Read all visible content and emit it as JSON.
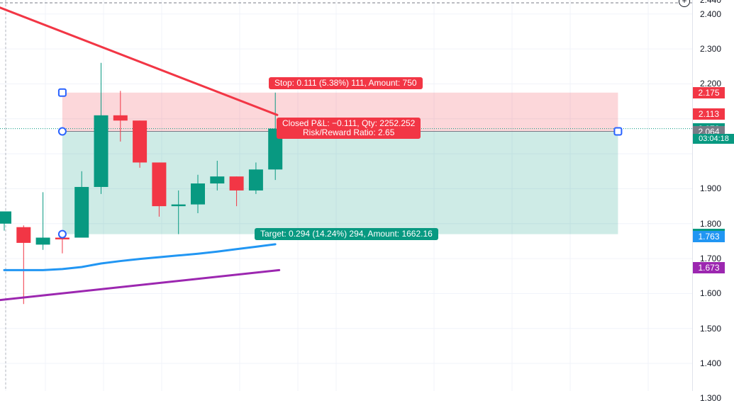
{
  "chart_data": {
    "type": "candlestick",
    "ylim": [
      1.3,
      2.45
    ],
    "grid": true,
    "y_ticks": [
      "2.440",
      "2.400",
      "2.300",
      "2.200",
      "1.900",
      "1.800",
      "1.700",
      "1.600",
      "1.500",
      "1.400",
      "1.300"
    ],
    "candles": [
      {
        "o": 1.8,
        "h": 1.835,
        "l": 1.78,
        "c": 1.835
      },
      {
        "o": 1.79,
        "h": 1.795,
        "l": 1.57,
        "c": 1.745
      },
      {
        "o": 1.74,
        "h": 1.89,
        "l": 1.725,
        "c": 1.76
      },
      {
        "o": 1.76,
        "h": 1.77,
        "l": 1.715,
        "c": 1.755
      },
      {
        "o": 1.76,
        "h": 1.95,
        "l": 1.76,
        "c": 1.905
      },
      {
        "o": 1.905,
        "h": 2.26,
        "l": 1.885,
        "c": 2.11
      },
      {
        "o": 2.11,
        "h": 2.18,
        "l": 2.035,
        "c": 2.095
      },
      {
        "o": 2.095,
        "h": 2.095,
        "l": 1.96,
        "c": 1.975
      },
      {
        "o": 1.975,
        "h": 1.975,
        "l": 1.82,
        "c": 1.85
      },
      {
        "o": 1.85,
        "h": 1.895,
        "l": 1.77,
        "c": 1.855
      },
      {
        "o": 1.855,
        "h": 1.94,
        "l": 1.83,
        "c": 1.915
      },
      {
        "o": 1.915,
        "h": 1.98,
        "l": 1.895,
        "c": 1.935
      },
      {
        "o": 1.935,
        "h": 1.935,
        "l": 1.85,
        "c": 1.895
      },
      {
        "o": 1.895,
        "h": 1.975,
        "l": 1.885,
        "c": 1.955
      },
      {
        "o": 1.955,
        "h": 2.175,
        "l": 1.925,
        "c": 2.072
      }
    ],
    "series": [
      {
        "x": [
          0,
          1,
          2,
          3,
          4,
          5,
          6,
          7,
          8,
          9,
          10,
          11,
          12,
          13,
          14
        ],
        "y": [
          1.667,
          1.667,
          1.667,
          1.67,
          1.676,
          1.686,
          1.693,
          1.699,
          1.704,
          1.709,
          1.714,
          1.72,
          1.727,
          1.734,
          1.741
        ],
        "color": "#2196f3"
      },
      {
        "x": [
          -0.3,
          14.2
        ],
        "y": [
          1.581,
          1.667
        ],
        "color": "#9c27b0"
      },
      {
        "x": [
          -0.3,
          14.1
        ],
        "y": [
          2.42,
          2.111
        ],
        "color": "#f23645"
      }
    ],
    "position": {
      "entry": 2.064,
      "stop": 2.175,
      "target": 1.77,
      "x_start": 3,
      "x_end": 31.7,
      "stop_label": "Stop: 0.111 (5.38%) 111, Amount: 750",
      "target_label": "Target: 0.294 (14.24%) 294, Amount: 1662.16",
      "pnl_label_line1": "Closed P&L: −0.111, Qty: 2252.252",
      "pnl_label_line2": "Risk/Reward Ratio: 2.65"
    },
    "last_price": 2.072,
    "countdown": "03:04:18",
    "price_labels": [
      {
        "value": 2.175,
        "text": "2.175",
        "color": "#f23645"
      },
      {
        "value": 2.113,
        "text": "2.113",
        "color": "#f23645"
      },
      {
        "value": 2.072,
        "text": "2.072",
        "color": "#089981"
      },
      {
        "value": 2.064,
        "text": "2.064",
        "color": "#787b86"
      },
      {
        "value": 1.77,
        "text": "1.770",
        "color": "#089981"
      },
      {
        "value": 1.763,
        "text": "1.763",
        "color": "#2196f3"
      },
      {
        "value": 1.673,
        "text": "1.673",
        "color": "#9c27b0"
      }
    ],
    "colors": {
      "up": "#089981",
      "down": "#f23645",
      "stop_zone": "rgba(242,54,69,0.2)",
      "target_zone": "rgba(8,153,129,0.2)"
    }
  }
}
